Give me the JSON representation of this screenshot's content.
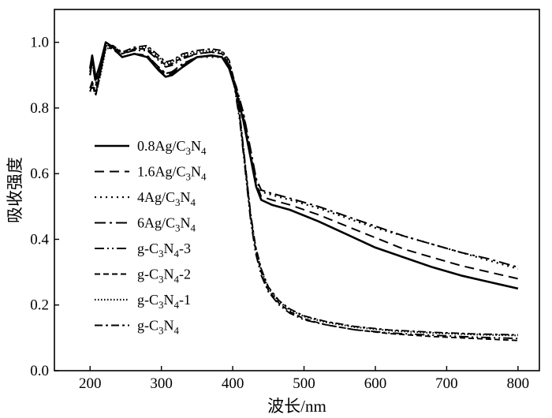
{
  "chart_data": {
    "type": "line",
    "xlabel": "波长/nm",
    "ylabel": "吸收强度",
    "xlim": [
      150,
      830
    ],
    "ylim": [
      0.0,
      1.1
    ],
    "xticks": [
      200,
      300,
      400,
      500,
      600,
      700,
      800
    ],
    "yticks": [
      0.0,
      0.2,
      0.4,
      0.6,
      0.8,
      1.0
    ],
    "yticks_labels": [
      "0.0",
      "0.2",
      "0.4",
      "0.6",
      "0.8",
      "1.0"
    ],
    "grid": false,
    "legend_position": "left",
    "series": [
      {
        "name": "0.8Ag/C3N4",
        "label": {
          "a": "0.8Ag/C",
          "s1": "3",
          "b": "N",
          "s2": "4",
          "c": ""
        },
        "dash": "solid",
        "width": 2.6,
        "x": [
          200,
          203,
          208,
          215,
          222,
          232,
          245,
          262,
          280,
          296,
          306,
          315,
          330,
          350,
          370,
          385,
          395,
          405,
          415,
          425,
          433,
          440,
          455,
          480,
          520,
          560,
          600,
          640,
          680,
          720,
          760,
          800
        ],
        "y": [
          0.92,
          0.96,
          0.89,
          0.94,
          1.0,
          0.985,
          0.955,
          0.965,
          0.955,
          0.915,
          0.895,
          0.9,
          0.925,
          0.955,
          0.96,
          0.955,
          0.92,
          0.85,
          0.76,
          0.65,
          0.56,
          0.52,
          0.505,
          0.49,
          0.455,
          0.415,
          0.375,
          0.345,
          0.315,
          0.29,
          0.27,
          0.25
        ]
      },
      {
        "name": "1.6Ag/C3N4",
        "label": {
          "a": "1.6Ag/C",
          "s1": "3",
          "b": "N",
          "s2": "4",
          "c": ""
        },
        "dash": "12,7",
        "width": 2.0,
        "x": [
          200,
          203,
          208,
          215,
          222,
          232,
          245,
          262,
          280,
          296,
          306,
          315,
          330,
          350,
          370,
          385,
          395,
          405,
          415,
          425,
          433,
          440,
          455,
          480,
          520,
          560,
          600,
          640,
          680,
          720,
          760,
          800
        ],
        "y": [
          0.91,
          0.95,
          0.885,
          0.93,
          0.995,
          0.985,
          0.955,
          0.965,
          0.96,
          0.92,
          0.9,
          0.905,
          0.93,
          0.955,
          0.96,
          0.955,
          0.92,
          0.855,
          0.77,
          0.66,
          0.57,
          0.53,
          0.52,
          0.505,
          0.475,
          0.44,
          0.405,
          0.37,
          0.345,
          0.32,
          0.3,
          0.28
        ]
      },
      {
        "name": "4Ag/C3N4",
        "label": {
          "a": "4Ag/C",
          "s1": "3",
          "b": "N",
          "s2": "4",
          "c": ""
        },
        "dash": "2,5",
        "width": 2.2,
        "x": [
          200,
          203,
          208,
          215,
          222,
          232,
          245,
          262,
          280,
          296,
          306,
          315,
          330,
          350,
          370,
          385,
          395,
          405,
          415,
          425,
          433,
          440,
          455,
          480,
          520,
          560,
          600,
          640,
          680,
          720,
          760,
          800
        ],
        "y": [
          0.9,
          0.945,
          0.875,
          0.925,
          0.99,
          0.98,
          0.955,
          0.965,
          0.955,
          0.925,
          0.905,
          0.91,
          0.935,
          0.955,
          0.955,
          0.955,
          0.925,
          0.86,
          0.78,
          0.67,
          0.58,
          0.545,
          0.535,
          0.52,
          0.495,
          0.465,
          0.435,
          0.41,
          0.385,
          0.36,
          0.335,
          0.31
        ]
      },
      {
        "name": "6Ag/C3N4",
        "label": {
          "a": "6Ag/C",
          "s1": "3",
          "b": "N",
          "s2": "4",
          "c": ""
        },
        "dash": "14,5,3,5",
        "width": 2.0,
        "x": [
          200,
          203,
          208,
          215,
          222,
          232,
          245,
          262,
          280,
          296,
          306,
          315,
          330,
          350,
          370,
          385,
          395,
          405,
          415,
          425,
          433,
          440,
          455,
          480,
          520,
          560,
          600,
          640,
          680,
          720,
          760,
          800
        ],
        "y": [
          0.9,
          0.94,
          0.87,
          0.92,
          0.985,
          0.98,
          0.955,
          0.965,
          0.96,
          0.925,
          0.905,
          0.91,
          0.935,
          0.955,
          0.96,
          0.955,
          0.925,
          0.865,
          0.785,
          0.675,
          0.585,
          0.55,
          0.54,
          0.525,
          0.5,
          0.47,
          0.44,
          0.41,
          0.385,
          0.36,
          0.34,
          0.315
        ]
      },
      {
        "name": "g-C3N4-3",
        "label": {
          "a": "g-C",
          "s1": "3",
          "b": "N",
          "s2": "4",
          "c": "-3"
        },
        "dash": "12,4,2,4,2,4",
        "width": 1.9,
        "x": [
          200,
          203,
          208,
          215,
          222,
          232,
          245,
          262,
          280,
          296,
          306,
          315,
          330,
          350,
          370,
          385,
          395,
          402,
          410,
          418,
          425,
          432,
          440,
          450,
          465,
          480,
          500,
          530,
          570,
          620,
          680,
          740,
          800
        ],
        "y": [
          0.86,
          0.88,
          0.85,
          0.92,
          0.99,
          0.99,
          0.965,
          0.975,
          0.975,
          0.945,
          0.925,
          0.93,
          0.95,
          0.965,
          0.97,
          0.965,
          0.93,
          0.87,
          0.76,
          0.6,
          0.46,
          0.36,
          0.29,
          0.24,
          0.2,
          0.175,
          0.155,
          0.14,
          0.125,
          0.115,
          0.108,
          0.102,
          0.098
        ]
      },
      {
        "name": "g-C3N4-2",
        "label": {
          "a": "g-C",
          "s1": "3",
          "b": "N",
          "s2": "4",
          "c": "-2"
        },
        "dash": "7,4",
        "width": 1.9,
        "x": [
          200,
          203,
          208,
          215,
          222,
          232,
          245,
          262,
          280,
          296,
          306,
          315,
          330,
          350,
          370,
          385,
          395,
          402,
          410,
          418,
          425,
          432,
          440,
          450,
          465,
          480,
          500,
          530,
          570,
          620,
          680,
          740,
          800
        ],
        "y": [
          0.85,
          0.87,
          0.84,
          0.91,
          0.985,
          0.99,
          0.965,
          0.98,
          0.98,
          0.95,
          0.93,
          0.935,
          0.955,
          0.965,
          0.97,
          0.965,
          0.935,
          0.875,
          0.77,
          0.61,
          0.47,
          0.37,
          0.3,
          0.245,
          0.205,
          0.18,
          0.158,
          0.14,
          0.125,
          0.113,
          0.104,
          0.098,
          0.092
        ]
      },
      {
        "name": "g-C3N4-1",
        "label": {
          "a": "g-C",
          "s1": "3",
          "b": "N",
          "s2": "4",
          "c": "-1"
        },
        "dash": "1.5,2.5",
        "width": 2.2,
        "x": [
          200,
          203,
          208,
          215,
          222,
          232,
          245,
          262,
          280,
          296,
          306,
          315,
          330,
          350,
          370,
          385,
          395,
          402,
          410,
          418,
          425,
          432,
          440,
          450,
          465,
          480,
          500,
          530,
          570,
          620,
          680,
          740,
          800
        ],
        "y": [
          0.85,
          0.865,
          0.84,
          0.905,
          0.98,
          0.985,
          0.965,
          0.98,
          0.985,
          0.955,
          0.935,
          0.94,
          0.96,
          0.97,
          0.975,
          0.97,
          0.94,
          0.88,
          0.775,
          0.615,
          0.475,
          0.375,
          0.305,
          0.25,
          0.21,
          0.185,
          0.165,
          0.148,
          0.133,
          0.122,
          0.115,
          0.11,
          0.107
        ]
      },
      {
        "name": "g-C3N4",
        "label": {
          "a": "g-C",
          "s1": "3",
          "b": "N",
          "s2": "4",
          "c": ""
        },
        "dash": "10,4,3,4",
        "width": 1.9,
        "x": [
          200,
          203,
          208,
          215,
          222,
          232,
          245,
          262,
          280,
          296,
          306,
          315,
          330,
          350,
          370,
          385,
          395,
          402,
          410,
          418,
          425,
          432,
          440,
          450,
          465,
          480,
          500,
          530,
          570,
          620,
          680,
          740,
          800
        ],
        "y": [
          0.86,
          0.875,
          0.845,
          0.915,
          0.985,
          0.99,
          0.97,
          0.985,
          0.99,
          0.96,
          0.94,
          0.945,
          0.965,
          0.975,
          0.98,
          0.975,
          0.945,
          0.885,
          0.78,
          0.62,
          0.48,
          0.38,
          0.31,
          0.255,
          0.213,
          0.188,
          0.167,
          0.15,
          0.135,
          0.124,
          0.117,
          0.112,
          0.109
        ]
      }
    ]
  }
}
